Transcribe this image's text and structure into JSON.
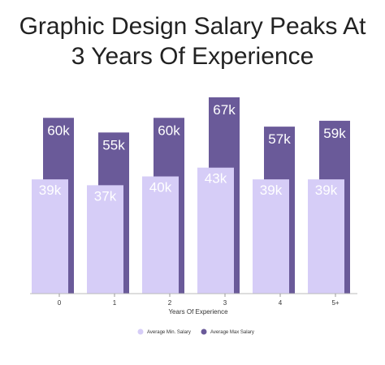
{
  "chart_data": {
    "type": "bar",
    "title_line1": "Graphic Design Salary Peaks At",
    "title_line2": "3 Years Of Experience",
    "xlabel": "Years Of Experience",
    "ylabel": "",
    "categories": [
      "0",
      "1",
      "2",
      "3",
      "4",
      "5+"
    ],
    "series": [
      {
        "name": "Average Min. Salary",
        "values": [
          39,
          37,
          40,
          43,
          39,
          39
        ],
        "labels": [
          "39k",
          "37k",
          "40k",
          "43k",
          "39k",
          "39k"
        ],
        "color": "#d6cdf7"
      },
      {
        "name": "Average Max Salary",
        "values": [
          60,
          55,
          60,
          67,
          57,
          59
        ],
        "labels": [
          "60k",
          "55k",
          "60k",
          "67k",
          "57k",
          "59k"
        ],
        "color": "#6a5a99"
      }
    ],
    "ylim": [
      0,
      67
    ],
    "grid": false,
    "legend": "bottom-center"
  }
}
